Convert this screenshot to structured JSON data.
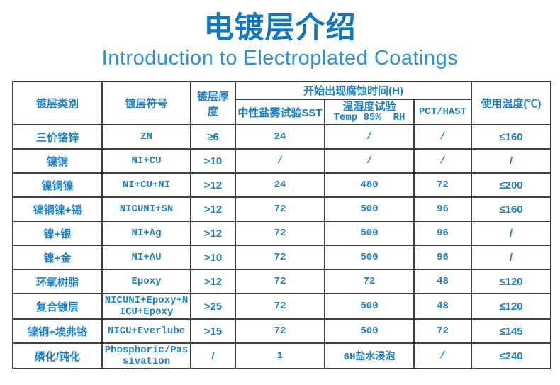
{
  "page": {
    "title": "电镀层介绍",
    "subtitle": "Introduction to Electroplated Coatings"
  },
  "colors": {
    "title_blue": "#1376bd",
    "subtitle_blue": "#2e8fd5",
    "table_text_blue": "#1e7fca",
    "border_gray": "#3f3f3f"
  },
  "table": {
    "headers": {
      "category": "镀层类别",
      "symbol": "镀层符号",
      "thickness": "镀层厚度",
      "corrosion_group": "开始出现腐蚀时间(H)",
      "sst": "中性盐雾试验SST",
      "temp_humidity_line1": "温湿度试验",
      "temp_humidity_line2": "Temp 85%  RH",
      "pct": "PCT/HAST",
      "usage_temp": "使用温度(℃)"
    },
    "rows": [
      {
        "category": "三价铬锌",
        "symbol": "ZN",
        "thickness": "≥6",
        "sst": "24",
        "temp_humidity": "/",
        "pct": "/",
        "usage_temp": "≤160"
      },
      {
        "category": "镍铜",
        "symbol": "NI+CU",
        "thickness": ">10",
        "sst": "/",
        "temp_humidity": "/",
        "pct": "/",
        "usage_temp": "/"
      },
      {
        "category": "镍铜镍",
        "symbol": "NI+CU+NI",
        "thickness": ">12",
        "sst": "24",
        "temp_humidity": "480",
        "pct": "72",
        "usage_temp": "≤200"
      },
      {
        "category": "镍铜镍+锡",
        "symbol": "NICUNI+SN",
        "thickness": ">12",
        "sst": "72",
        "temp_humidity": "500",
        "pct": "96",
        "usage_temp": "≤160"
      },
      {
        "category": "镍+银",
        "symbol": "NI+Ag",
        "thickness": ">12",
        "sst": "72",
        "temp_humidity": "500",
        "pct": "96",
        "usage_temp": "/"
      },
      {
        "category": "镍+金",
        "symbol": "NI+AU",
        "thickness": ">10",
        "sst": "72",
        "temp_humidity": "500",
        "pct": "96",
        "usage_temp": "/"
      },
      {
        "category": "环氧树脂",
        "symbol": "Epoxy",
        "thickness": ">12",
        "sst": "72",
        "temp_humidity": "72",
        "pct": "48",
        "usage_temp": "≤120"
      },
      {
        "category": "复合镀层",
        "symbol": "NICUNI+Epoxy+NICU+Epoxy",
        "thickness": ">25",
        "sst": "72",
        "temp_humidity": "500",
        "pct": "48",
        "usage_temp": "≤120"
      },
      {
        "category": "镍铜+埃弗铬",
        "symbol": "NICU+Everlube",
        "thickness": ">15",
        "sst": "72",
        "temp_humidity": "500",
        "pct": "72",
        "usage_temp": "≤145"
      },
      {
        "category": "磷化/钝化",
        "symbol": "Phosphoric/Passivation",
        "thickness": "/",
        "sst": "1",
        "temp_humidity": "6H盐水浸泡",
        "pct": "/",
        "usage_temp": "≤240"
      }
    ]
  }
}
